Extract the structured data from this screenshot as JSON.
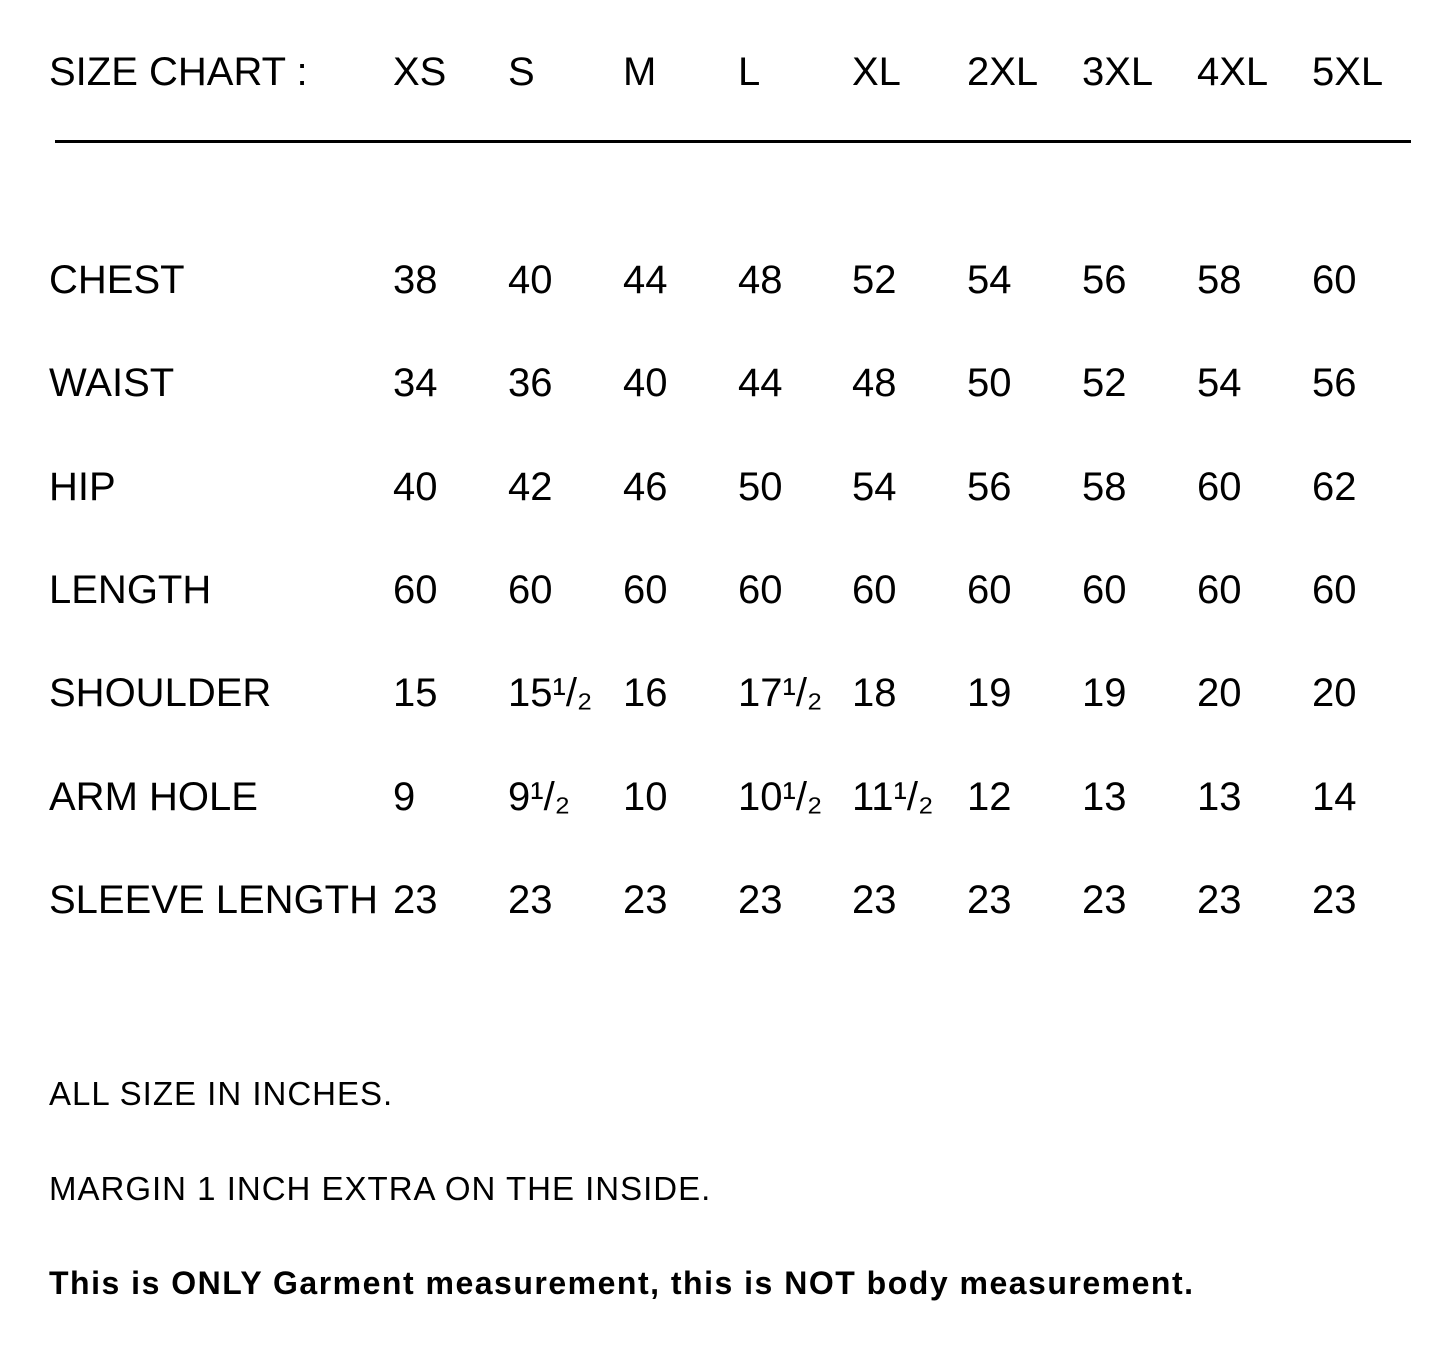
{
  "title": "SIZE CHART :",
  "sizes": [
    "XS",
    "S",
    "M",
    "L",
    "XL",
    "2XL",
    "3XL",
    "4XL",
    "5XL"
  ],
  "rows": [
    {
      "label": "CHEST",
      "values": [
        "38",
        "40",
        "44",
        "48",
        "52",
        "54",
        "56",
        "58",
        "60"
      ]
    },
    {
      "label": "WAIST",
      "values": [
        "34",
        "36",
        "40",
        "44",
        "48",
        "50",
        "52",
        "54",
        "56"
      ]
    },
    {
      "label": "HIP",
      "values": [
        "40",
        "42",
        "46",
        "50",
        "54",
        "56",
        "58",
        "60",
        "62"
      ]
    },
    {
      "label": "LENGTH",
      "values": [
        "60",
        "60",
        "60",
        "60",
        "60",
        "60",
        "60",
        "60",
        "60"
      ]
    },
    {
      "label": "SHOULDER",
      "values": [
        "15",
        "15¹/₂",
        "16",
        "17¹/₂",
        "18",
        "19",
        "19",
        "20",
        "20"
      ]
    },
    {
      "label": "ARM HOLE",
      "values": [
        "9",
        "9¹/₂",
        "10",
        "10¹/₂",
        "11¹/₂",
        "12",
        "13",
        "13",
        "14"
      ]
    },
    {
      "label": "SLEEVE LENGTH",
      "values": [
        "23",
        "23",
        "23",
        "23",
        "23",
        "23",
        "23",
        "23",
        "23"
      ]
    }
  ],
  "notes": {
    "units": "ALL SIZE IN INCHES.",
    "margin": "MARGIN 1 INCH EXTRA ON THE INSIDE.",
    "disclaimer": "This is ONLY Garment measurement, this is NOT body measurement."
  }
}
